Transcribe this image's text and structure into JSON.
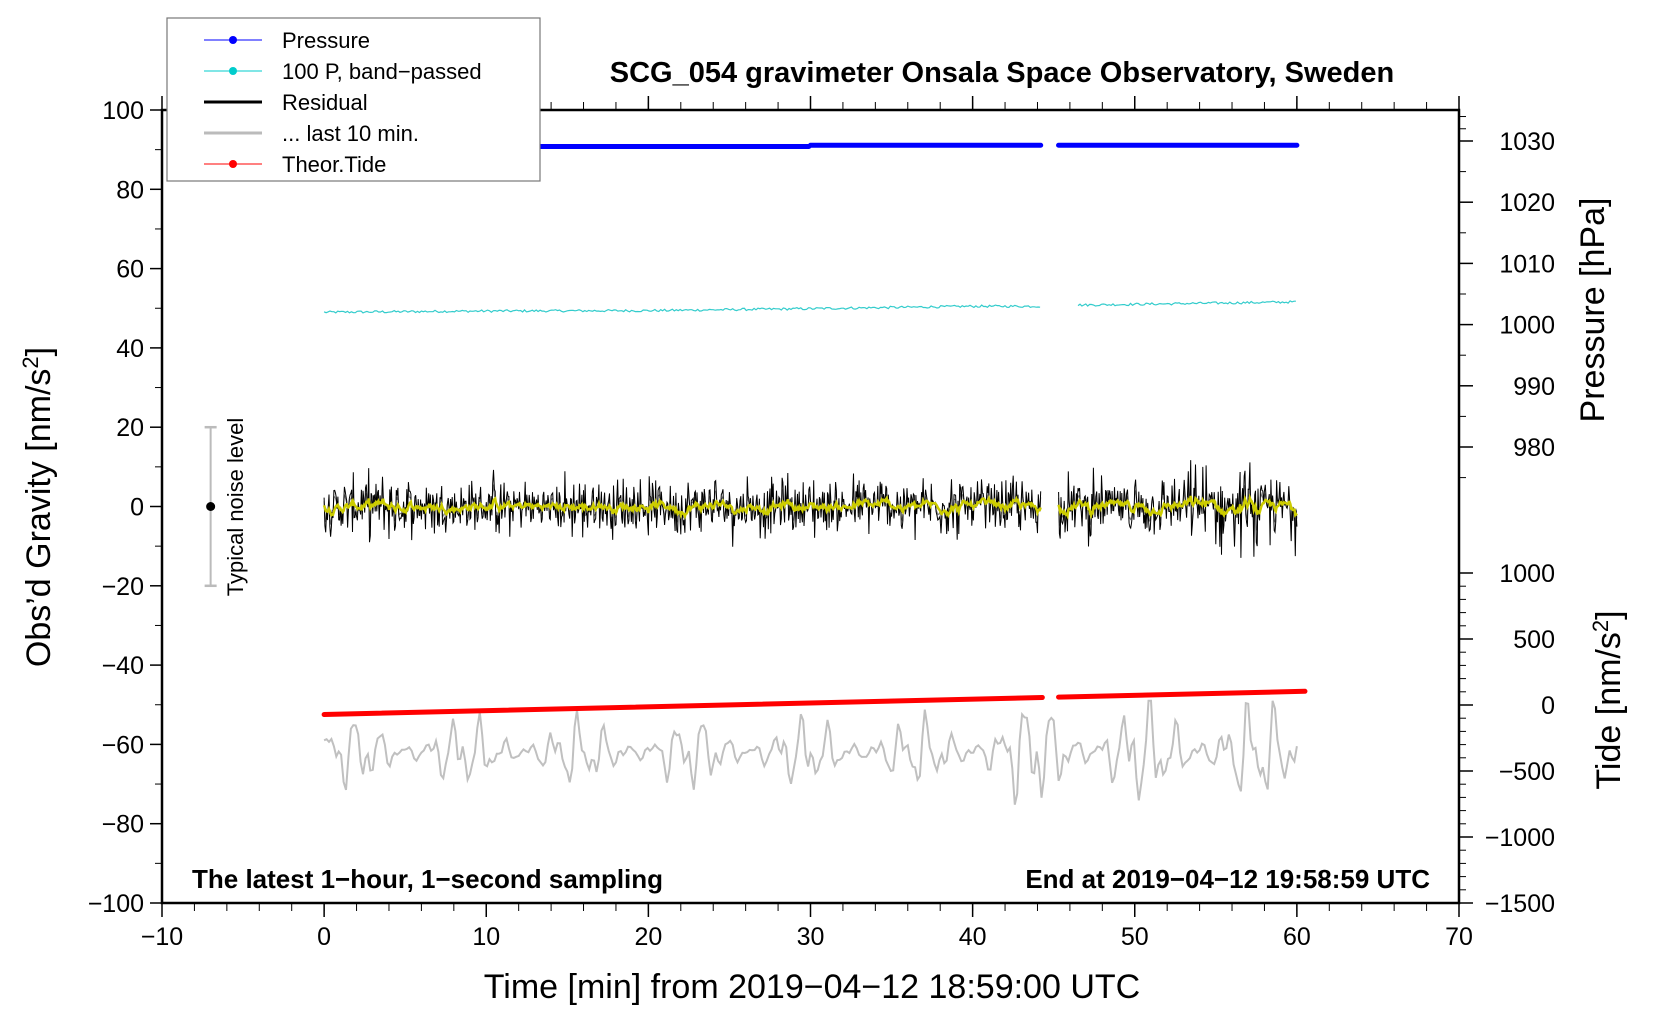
{
  "chart_data": {
    "type": "line",
    "title": "SCG_054 gravimeter Onsala Space Observatory, Sweden",
    "xlabel": "Time [min] from 2019−04−12 18:59:00 UTC",
    "ylabel": "Obs’d Gravity [nm/s",
    "ylabel_sup": "2",
    "ylabel_close": "]",
    "y2label": "Pressure [hPa]",
    "y3label": "Tide [nm/s",
    "y3label_sup": "2",
    "y3label_close": "]",
    "xlim": [
      -10,
      70
    ],
    "ylim": [
      -100,
      100
    ],
    "y2lim_ticks": [
      980,
      1030
    ],
    "y3lim": [
      -1500,
      1000
    ],
    "xticks": [
      "−10",
      "0",
      "10",
      "20",
      "30",
      "40",
      "50",
      "60",
      "70"
    ],
    "yticks": [
      "100",
      "80",
      "60",
      "40",
      "20",
      "0",
      "−20",
      "−40",
      "−60",
      "−80",
      "−100"
    ],
    "y2ticks": [
      "1030",
      "1020",
      "1010",
      "1000",
      "990",
      "980"
    ],
    "y3ticks": [
      "1000",
      "500",
      "0",
      "−500",
      "−1000",
      "−1500"
    ],
    "legend": {
      "placement": "top-left",
      "entries": [
        {
          "label": "Pressure",
          "color": "#0000ff"
        },
        {
          "label": "100 P, band−passed",
          "color": "#00cccc"
        },
        {
          "label": "Residual",
          "color": "#000000"
        },
        {
          "label": "... last 10 min.",
          "color": "#bbbbbb"
        },
        {
          "label": "Theor.Tide",
          "color": "#ff0000"
        }
      ]
    },
    "annotations": {
      "left_note": "The latest 1−hour, 1−second sampling",
      "right_note": "End at 2019−04−12 19:58:59 UTC",
      "noise_label": "Typical noise level",
      "noise_range": [
        -20,
        20
      ],
      "noise_x": -7
    },
    "data_gap_min": [
      44.2,
      45.3
    ],
    "series": [
      {
        "name": "Pressure",
        "unit": "hPa",
        "x": [
          0,
          29.9,
          30,
          44.2,
          45.3,
          60
        ],
        "values": [
          1029.1,
          1029.1,
          1029.3,
          1029.3,
          1029.3,
          1029.3
        ]
      },
      {
        "name": "100 P, band-passed",
        "unit": "nm/s2",
        "x": [
          0,
          10,
          20,
          30,
          40,
          44.2,
          46.5,
          50,
          60
        ],
        "values": [
          49.0,
          49.3,
          49.4,
          49.9,
          50.5,
          50.5,
          50.8,
          51.0,
          51.6
        ]
      },
      {
        "name": "Residual",
        "unit": "nm/s2",
        "mean": 0,
        "typical_peak": 10,
        "max_peak": 14,
        "min_peak": -15,
        "x_range": [
          0,
          60
        ]
      },
      {
        "name": "Residual smoothed",
        "color": "#cccc00",
        "mean": 0,
        "amplitude": 1.5
      },
      {
        "name": "... last 10 min.",
        "unit": "nm/s2",
        "offset": -62,
        "min": -76,
        "max": -49
      },
      {
        "name": "Theor.Tide",
        "unit": "nm/s2",
        "x": [
          0,
          60.5
        ],
        "values": [
          -72,
          104
        ]
      }
    ]
  }
}
